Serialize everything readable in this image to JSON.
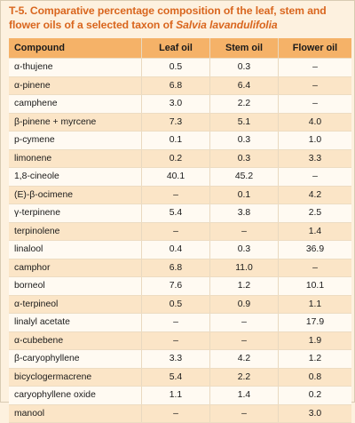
{
  "caption": {
    "prefix": "T-5. Comparative percentage composition of the leaf, stem and flower oils of a selected taxon of ",
    "species": "Salvia lavandulifolia"
  },
  "table": {
    "headers": [
      "Compound",
      "Leaf oil",
      "Stem oil",
      "Flower oil"
    ],
    "rows": [
      [
        "α-thujene",
        "0.5",
        "0.3",
        "–"
      ],
      [
        "α-pinene",
        "6.8",
        "6.4",
        "–"
      ],
      [
        "camphene",
        "3.0",
        "2.2",
        "–"
      ],
      [
        "β-pinene + myrcene",
        "7.3",
        "5.1",
        "4.0"
      ],
      [
        "p-cymene",
        "0.1",
        "0.3",
        "1.0"
      ],
      [
        "limonene",
        "0.2",
        "0.3",
        "3.3"
      ],
      [
        "1,8-cineole",
        "40.1",
        "45.2",
        "–"
      ],
      [
        "(E)-β-ocimene",
        "–",
        "0.1",
        "4.2"
      ],
      [
        "γ-terpinene",
        "5.4",
        "3.8",
        "2.5"
      ],
      [
        "terpinolene",
        "–",
        "–",
        "1.4"
      ],
      [
        "linalool",
        "0.4",
        "0.3",
        "36.9"
      ],
      [
        "camphor",
        "6.8",
        "11.0",
        "–"
      ],
      [
        "borneol",
        "7.6",
        "1.2",
        "10.1"
      ],
      [
        "α-terpineol",
        "0.5",
        "0.9",
        "1.1"
      ],
      [
        "linalyl acetate",
        "–",
        "–",
        "17.9"
      ],
      [
        "α-cubebene",
        "–",
        "–",
        "1.9"
      ],
      [
        "β-caryophyllene",
        "3.3",
        "4.2",
        "1.2"
      ],
      [
        "bicyclogermacrene",
        "5.4",
        "2.2",
        "0.8"
      ],
      [
        "caryophyllene oxide",
        "1.1",
        "1.4",
        "0.2"
      ],
      [
        "manool",
        "–",
        "–",
        "3.0"
      ]
    ]
  }
}
